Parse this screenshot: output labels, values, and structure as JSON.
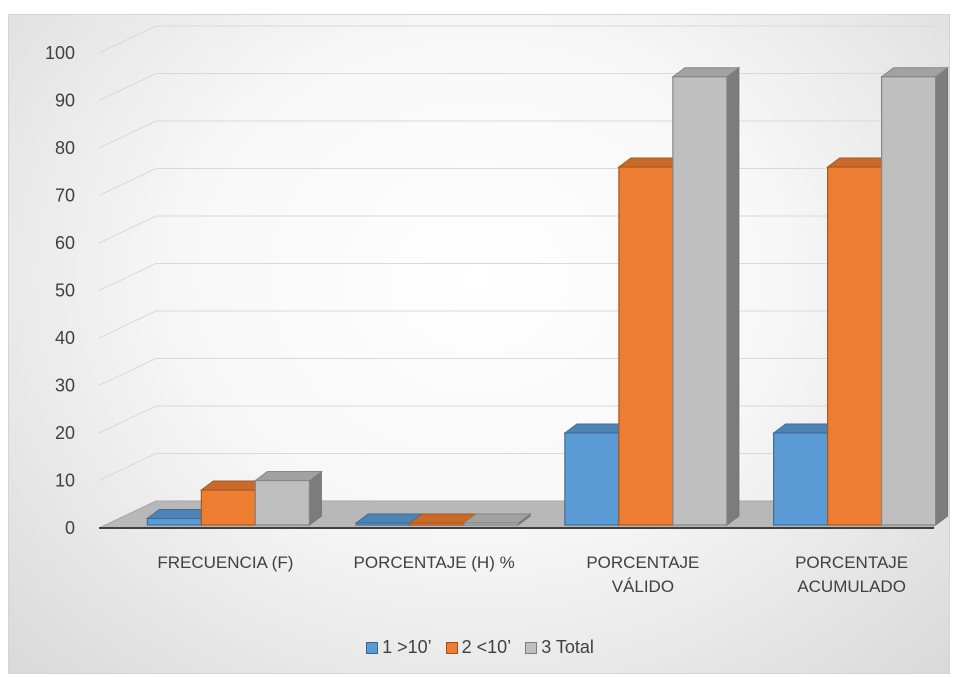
{
  "chart_data": {
    "type": "bar",
    "categories": [
      "FRECUENCIA (F)",
      "PORCENTAJE (H) %",
      "PORCENTAJE VÁLIDO",
      "PORCENTAJE ACUMULADO"
    ],
    "series": [
      {
        "name": "1 >10’",
        "values": [
          2,
          0,
          20,
          20
        ],
        "color": "#5b9bd5"
      },
      {
        "name": "2 <10’",
        "values": [
          8,
          0,
          76,
          76
        ],
        "color": "#ed7d31"
      },
      {
        "name": "3 Total",
        "values": [
          10,
          0,
          95,
          95
        ],
        "color": "#bfbfbf"
      }
    ],
    "title": "",
    "xlabel": "",
    "ylabel": "",
    "ylim": [
      0,
      100
    ],
    "yticks": [
      0,
      10,
      20,
      30,
      40,
      50,
      60,
      70,
      80,
      90,
      100
    ],
    "grid": true,
    "legend": "bottom",
    "style": "3d-clustered-column"
  }
}
